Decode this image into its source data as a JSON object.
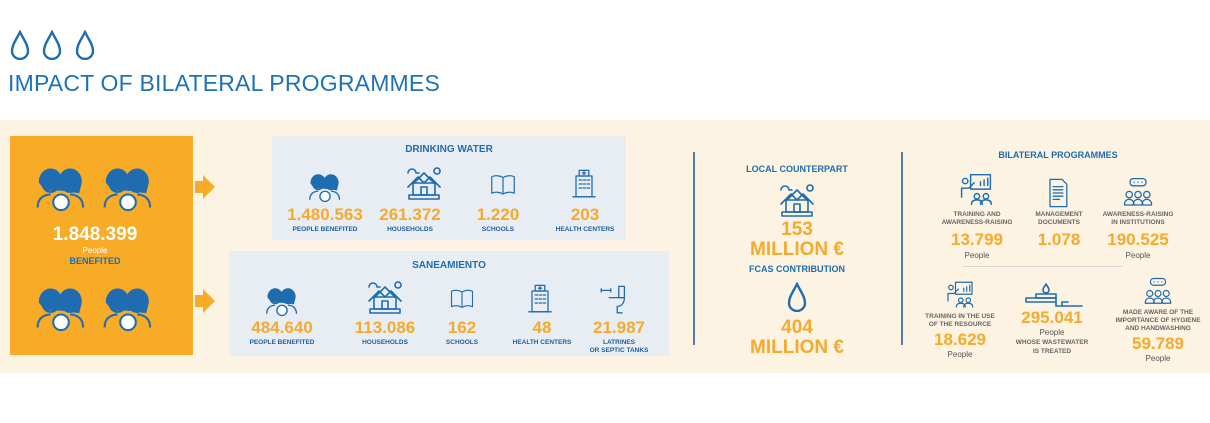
{
  "header": {
    "title": "IMPACT OF BILATERAL PROGRAMMES",
    "icons": [
      "drop-icon",
      "drop-icon",
      "drop-icon"
    ]
  },
  "total": {
    "value": "1.848.399",
    "unit": "People",
    "label": "BENEFITED"
  },
  "drinking_water": {
    "title": "DRINKING WATER",
    "items": [
      {
        "value": "1.480.563",
        "label": "PEOPLE BENEFITED",
        "icon": "people-icon"
      },
      {
        "value": "261.372",
        "label": "HOUSEHOLDS",
        "icon": "house-icon"
      },
      {
        "value": "1.220",
        "label": "SCHOOLS",
        "icon": "book-icon"
      },
      {
        "value": "203",
        "label": "HEALTH CENTERS",
        "icon": "hospital-icon"
      }
    ]
  },
  "sanitation": {
    "title": "SANEAMIENTO",
    "items": [
      {
        "value": "484.640",
        "label": "PEOPLE BENEFITED",
        "icon": "people-icon"
      },
      {
        "value": "113.086",
        "label": "HOUSEHOLDS",
        "icon": "house-icon"
      },
      {
        "value": "162",
        "label": "SCHOOLS",
        "icon": "book-icon"
      },
      {
        "value": "48",
        "label": "HEALTH CENTERS",
        "icon": "hospital-icon"
      },
      {
        "value": "21.987",
        "label": "LATRINES",
        "label2": "OR SEPTIC TANKS",
        "icon": "toilet-icon"
      }
    ]
  },
  "funding": {
    "local": {
      "title": "LOCAL COUNTERPART",
      "value": "153",
      "unit": "MILLION €"
    },
    "fcas": {
      "title": "FCAS CONTRIBUTION",
      "value": "404",
      "unit": "MILLION €"
    }
  },
  "bilateral": {
    "title": "BILATERAL PROGRAMMES",
    "items": [
      {
        "label": "TRAINING AND",
        "label2": "AWARENESS-RAISING",
        "value": "13.799",
        "unit": "People"
      },
      {
        "label": "MANAGEMENT",
        "label2": "DOCUMENTS",
        "value": "1.078"
      },
      {
        "label": "AWARENESS-RAISING",
        "label2": "IN INSTITUTIONS",
        "value": "190.525",
        "unit": "People"
      },
      {
        "label": "TRAINING IN THE USE",
        "label2": "OF THE RESOURCE",
        "value": "18.629",
        "unit": "People"
      },
      {
        "value": "295.041",
        "unit": "People",
        "label": "WHOSE WASTEWATER",
        "label2": "IS TREATED"
      },
      {
        "label": "MADE AWARE OF THE",
        "label2": "IMPORTANCE OF HYGIENE",
        "label3": "AND HANDWASHING",
        "value": "59.789",
        "unit": "People"
      }
    ]
  },
  "colors": {
    "blue": "#1f6db0",
    "orange": "#f8ab27",
    "cream": "#fdf3e2",
    "panel": "#e7edf2"
  }
}
